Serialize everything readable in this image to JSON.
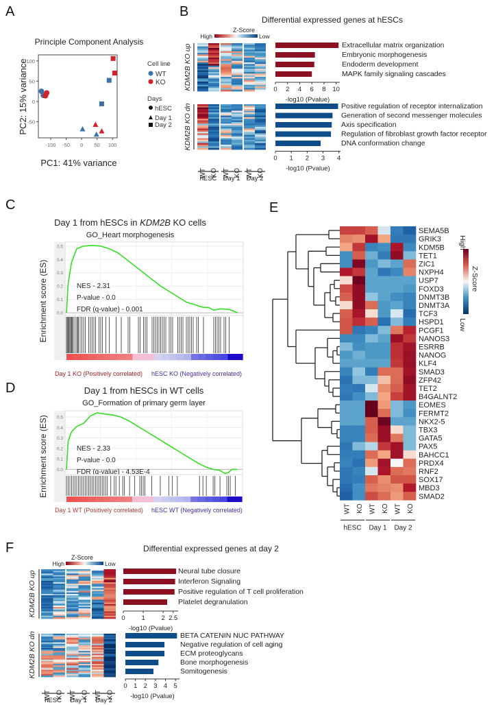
{
  "panels": {
    "A": "A",
    "B": "B",
    "C": "C",
    "D": "D",
    "E": "E",
    "F": "F"
  },
  "colors": {
    "wt": "#3b72a8",
    "ko": "#d2232a",
    "heat_high": "#8b0a1d",
    "heat_mid": "#f7f7f7",
    "heat_low": "#08427a",
    "bar_up": "#8b1020",
    "bar_dn": "#0f4c8a",
    "es_line": "#33dd22"
  },
  "chart_data": [
    {
      "id": "A",
      "type": "scatter",
      "title": "Principle Component Analysis",
      "xlabel": "PC1: 41% variance",
      "ylabel": "PC2: 15% variance",
      "xlim": [
        -140,
        115
      ],
      "ylim": [
        -90,
        115
      ],
      "xticks": [
        -100,
        -50,
        0,
        50,
        100
      ],
      "yticks": [
        -50,
        0,
        50,
        100
      ],
      "grid": false,
      "legend": {
        "position": "right",
        "cell_line_title": "Cell line",
        "cell_lines": [
          {
            "label": "WT",
            "key": "wt"
          },
          {
            "label": "KO",
            "key": "ko"
          }
        ],
        "days_title": "Days",
        "days": [
          {
            "label": "hESC",
            "shape": "circle"
          },
          {
            "label": "Day 1",
            "shape": "triangle"
          },
          {
            "label": "Day 2",
            "shape": "square"
          }
        ]
      },
      "points": [
        {
          "x": -130,
          "y": 25,
          "cell": "wt",
          "shape": "circle"
        },
        {
          "x": -124,
          "y": 15,
          "cell": "wt",
          "shape": "circle"
        },
        {
          "x": -117,
          "y": 14,
          "cell": "ko",
          "shape": "circle"
        },
        {
          "x": -113,
          "y": 21,
          "cell": "ko",
          "shape": "circle"
        },
        {
          "x": 3,
          "y": -68,
          "cell": "wt",
          "shape": "triangle"
        },
        {
          "x": 48,
          "y": -81,
          "cell": "wt",
          "shape": "triangle"
        },
        {
          "x": 45,
          "y": -57,
          "cell": "ko",
          "shape": "triangle"
        },
        {
          "x": 65,
          "y": -73,
          "cell": "ko",
          "shape": "triangle"
        },
        {
          "x": 65,
          "y": -6,
          "cell": "wt",
          "shape": "square"
        },
        {
          "x": 89,
          "y": 52,
          "cell": "wt",
          "shape": "square"
        },
        {
          "x": 102,
          "y": 106,
          "cell": "ko",
          "shape": "square"
        },
        {
          "x": 107,
          "y": 70,
          "cell": "ko",
          "shape": "square"
        }
      ]
    },
    {
      "id": "B-up",
      "type": "bar",
      "orientation": "horizontal",
      "title": "Differential expressed genes at hESCs",
      "group_label": "KDM2B KO up",
      "categories": [
        "Extracellular matrix organization",
        "Embryonic morphogenesis",
        "Endoderm development",
        "MAPK family signaling cascades"
      ],
      "values": [
        10.4,
        6.5,
        6.4,
        6.0
      ],
      "xlabel": "-log10 (Pvalue)",
      "xlim": [
        0,
        10.6
      ],
      "xticks": [
        0,
        2,
        4,
        6,
        8,
        10
      ],
      "color_key": "bar_up"
    },
    {
      "id": "B-dn",
      "type": "bar",
      "orientation": "horizontal",
      "group_label": "KDM2B KO dn",
      "categories": [
        "Positive regulation of receptor internalization",
        "Generation of second messenger molecules",
        "Axis specification",
        "Regulation of fibroblast growth factor receptor",
        "DNA conformation change"
      ],
      "values": [
        3.95,
        3.6,
        3.55,
        3.5,
        2.85
      ],
      "xlabel": "-log10 (Pvalue)",
      "xlim": [
        0,
        4.1
      ],
      "xticks": [
        0,
        1,
        2,
        3,
        4
      ],
      "color_key": "bar_dn"
    },
    {
      "id": "C",
      "type": "line",
      "title": "Day 1 from hESCs in KDM2B KO cells",
      "title_parts": [
        "Day 1 from hESCs in ",
        "KDM2B",
        " KO cells"
      ],
      "subtitle": "GO_Heart morphogenesis",
      "ylabel": "Enrichment score (ES)",
      "ylim": [
        -0.02,
        0.53
      ],
      "yticks": [
        0.0,
        0.1,
        0.2,
        0.3,
        0.4,
        0.5
      ],
      "x": [
        0,
        0.01,
        0.03,
        0.06,
        0.1,
        0.15,
        0.2,
        0.25,
        0.3,
        0.35,
        0.4,
        0.45,
        0.5,
        0.55,
        0.6,
        0.65,
        0.7,
        0.75,
        0.8,
        0.83,
        0.86,
        0.9,
        0.95,
        1.0
      ],
      "es": [
        0.0,
        0.22,
        0.38,
        0.48,
        0.5,
        0.505,
        0.5,
        0.48,
        0.45,
        0.4,
        0.35,
        0.3,
        0.25,
        0.2,
        0.16,
        0.12,
        0.08,
        0.06,
        0.04,
        0.04,
        0.02,
        0.03,
        0.025,
        0.0
      ],
      "stats": [
        "NES - 2.31",
        "P-value - 0.0",
        "FDR (q-value) - 0.001"
      ],
      "hits": [
        0.0,
        0.005,
        0.01,
        0.015,
        0.02,
        0.025,
        0.03,
        0.035,
        0.04,
        0.05,
        0.06,
        0.065,
        0.07,
        0.08,
        0.09,
        0.1,
        0.11,
        0.13,
        0.14,
        0.15,
        0.16,
        0.17,
        0.19,
        0.2,
        0.21,
        0.23,
        0.25,
        0.29,
        0.32,
        0.36,
        0.37,
        0.42,
        0.43,
        0.45,
        0.46,
        0.47,
        0.5,
        0.51,
        0.52,
        0.53,
        0.54,
        0.55,
        0.56,
        0.57,
        0.58,
        0.6,
        0.61,
        0.62,
        0.65,
        0.66,
        0.67,
        0.68,
        0.7,
        0.71,
        0.72,
        0.73,
        0.74,
        0.76,
        0.77,
        0.8,
        0.86,
        0.87,
        0.88,
        0.89,
        0.9,
        0.92,
        0.93,
        0.95
      ],
      "left_label": "Day 1 KO (Positively correlated)",
      "right_label": "hESC KO (Negatively correlated)"
    },
    {
      "id": "D",
      "type": "line",
      "title": "Day 1 from hESCs in WT cells",
      "subtitle": "GO_Formation of primary germ layer",
      "ylabel": "Enrichment score (ES)",
      "ylim": [
        -0.05,
        0.56
      ],
      "yticks": [
        0.0,
        0.1,
        0.2,
        0.3,
        0.4,
        0.5
      ],
      "x": [
        0,
        0.01,
        0.03,
        0.06,
        0.1,
        0.14,
        0.18,
        0.22,
        0.27,
        0.32,
        0.37,
        0.42,
        0.47,
        0.52,
        0.57,
        0.62,
        0.67,
        0.72,
        0.77,
        0.82,
        0.86,
        0.9,
        0.93,
        0.95,
        0.97,
        1.0
      ],
      "es": [
        0.0,
        0.27,
        0.36,
        0.41,
        0.44,
        0.51,
        0.54,
        0.53,
        0.52,
        0.5,
        0.46,
        0.41,
        0.36,
        0.31,
        0.26,
        0.21,
        0.16,
        0.11,
        0.06,
        0.02,
        0.0,
        -0.01,
        -0.04,
        -0.03,
        0.0,
        0.0
      ],
      "stats": [
        "NES - 2.33",
        "P-value - 0.0",
        "FDR (q-value) - 4.53E-4"
      ],
      "hits": [
        0.0,
        0.01,
        0.02,
        0.03,
        0.04,
        0.05,
        0.06,
        0.07,
        0.08,
        0.09,
        0.1,
        0.11,
        0.12,
        0.13,
        0.14,
        0.15,
        0.16,
        0.17,
        0.18,
        0.19,
        0.2,
        0.21,
        0.22,
        0.23,
        0.24,
        0.26,
        0.28,
        0.29,
        0.31,
        0.33,
        0.34,
        0.37,
        0.4,
        0.43,
        0.44,
        0.45,
        0.46,
        0.5,
        0.55,
        0.6,
        0.62,
        0.65,
        0.78,
        0.8,
        0.82,
        0.86,
        0.87,
        0.9,
        0.94,
        0.95,
        0.96,
        0.99
      ],
      "left_label": "Day 1 WT (Positively correlated)",
      "right_label": "hESC WT (Negatively correlated)"
    },
    {
      "id": "E",
      "type": "heatmap",
      "columns": [
        "WT",
        "KO",
        "WT",
        "KO",
        "WT",
        "KO"
      ],
      "groups": [
        "hESC",
        "Day 1",
        "Day 2"
      ],
      "legend_title": "Z-Score",
      "legend_high": "High",
      "legend_low": "Low",
      "rows": [
        "SEMA5B",
        "GRIK3",
        "KDM5B",
        "TET1",
        "ZIC1",
        "NXPH4",
        "USP7",
        "FOXD3",
        "DNMT3B",
        "DNMT3A",
        "TCF3",
        "HSPD1",
        "PCGF1",
        "NANOS3",
        "ESRRB",
        "NANOG",
        "KLF4",
        "SMAD3",
        "ZFP42",
        "TET2",
        "B4GALNT2",
        "EOMES",
        "FERMT2",
        "NKX2-5",
        "TBX3",
        "GATA5",
        "PAX5",
        "BAHCC1",
        "PRDX4",
        "RNF2",
        "SOX17",
        "MBD3",
        "SMAD2"
      ],
      "values": [
        [
          1.2,
          1.2,
          0.9,
          -0.1,
          -1.1,
          -1.6
        ],
        [
          0.6,
          0.5,
          1.8,
          0.3,
          -1.2,
          -1.2
        ],
        [
          0.3,
          1.3,
          -1.0,
          -0.8,
          1.7,
          -0.9
        ],
        [
          -0.8,
          0.9,
          -0.5,
          -1.1,
          2.0,
          -0.4
        ],
        [
          -0.8,
          2.2,
          -0.7,
          -0.4,
          -0.6,
          0.8
        ],
        [
          1.6,
          1.3,
          -0.6,
          -1.2,
          -0.9,
          0.6
        ],
        [
          0.1,
          2.4,
          -0.6,
          -0.6,
          -0.6,
          -0.6
        ],
        [
          1.1,
          2.0,
          -0.6,
          -0.6,
          -0.6,
          -0.7
        ],
        [
          0.9,
          2.0,
          -0.3,
          -0.6,
          -0.8,
          -1.0
        ],
        [
          0.1,
          2.0,
          0.8,
          -0.7,
          -0.6,
          -1.0
        ],
        [
          0.9,
          1.7,
          0.1,
          -0.7,
          -0.1,
          -1.4
        ],
        [
          1.0,
          1.4,
          0.9,
          -1.3,
          -0.4,
          -1.1
        ],
        [
          1.0,
          -1.2,
          -1.0,
          -0.4,
          0.7,
          1.5
        ],
        [
          -0.9,
          -0.9,
          -0.4,
          -0.6,
          1.9,
          1.3
        ],
        [
          -0.4,
          -0.8,
          -0.7,
          -0.7,
          1.4,
          1.8
        ],
        [
          -0.7,
          -0.5,
          -0.7,
          -0.7,
          1.4,
          1.9
        ],
        [
          -0.6,
          -0.6,
          -0.6,
          -0.6,
          1.3,
          1.9
        ],
        [
          -1.0,
          -0.3,
          -1.1,
          0.8,
          0.8,
          1.8
        ],
        [
          -1.3,
          -0.4,
          -0.4,
          0.2,
          0.8,
          2.0
        ],
        [
          -1.1,
          -1.2,
          -0.1,
          0.5,
          0.9,
          1.8
        ],
        [
          -1.2,
          -0.8,
          -0.4,
          0.3,
          1.2,
          1.8
        ],
        [
          -0.6,
          -0.6,
          2.5,
          0.4,
          -0.4,
          -0.7
        ],
        [
          -0.6,
          -0.6,
          2.5,
          0.8,
          -0.4,
          -0.8
        ],
        [
          -0.6,
          -0.6,
          0.9,
          2.4,
          -0.6,
          -0.6
        ],
        [
          -1.0,
          -1.0,
          0.9,
          1.9,
          0.1,
          -0.4
        ],
        [
          -1.0,
          -1.0,
          0.8,
          1.9,
          0.7,
          -0.4
        ],
        [
          -1.2,
          -0.4,
          -0.2,
          1.3,
          1.8,
          -0.4
        ],
        [
          -1.1,
          -1.1,
          0.8,
          0.3,
          1.8,
          0.1
        ],
        [
          -1.0,
          -1.3,
          0.4,
          1.8,
          0.0,
          0.8
        ],
        [
          -1.2,
          -1.0,
          -0.1,
          1.7,
          0.8,
          0.7
        ],
        [
          -1.2,
          -1.1,
          0.9,
          0.5,
          1.0,
          1.0
        ],
        [
          -1.4,
          -0.8,
          0.7,
          0.6,
          0.5,
          1.6
        ],
        [
          -1.6,
          -0.8,
          1.1,
          0.8,
          0.4,
          0.9
        ]
      ]
    },
    {
      "id": "F-up",
      "type": "bar",
      "orientation": "horizontal",
      "title": "Differential expressed genes at day 2",
      "group_label": "KDM2B KO up",
      "categories": [
        "Neural tube closure",
        "Interferon Signaling",
        "Positive regulation of T cell proliferation",
        "Platelet degranulation"
      ],
      "values": [
        2.65,
        2.6,
        2.57,
        2.2
      ],
      "xlabel": "-log10 (Pvalue)",
      "xlim": [
        0,
        2.75
      ],
      "xticks": [
        0,
        1,
        2,
        2.5
      ],
      "color_key": "bar_up"
    },
    {
      "id": "F-dn",
      "type": "bar",
      "orientation": "horizontal",
      "group_label": "KDM2B KO dn",
      "categories": [
        "BETA CATENIN NUC PATHWAY",
        "Negative regulation of cell aging",
        "ECM proteoglycans",
        "Bone morphogenesis",
        "Somitogenesis"
      ],
      "values": [
        5.15,
        3.9,
        3.9,
        3.3,
        2.8
      ],
      "xlabel": "-log10 (Pvalue)",
      "xlim": [
        0,
        5.4
      ],
      "xticks": [
        0,
        1,
        2,
        3,
        4,
        5
      ],
      "color_key": "bar_dn"
    }
  ],
  "heat_small": {
    "legend_title": "Z-Score",
    "legend_high": "High",
    "legend_low": "Low",
    "columns": [
      "WT",
      "KO",
      "WT",
      "KO",
      "WT",
      "KO"
    ],
    "groups": [
      "hESC",
      "Day 1",
      "Day 2"
    ]
  }
}
